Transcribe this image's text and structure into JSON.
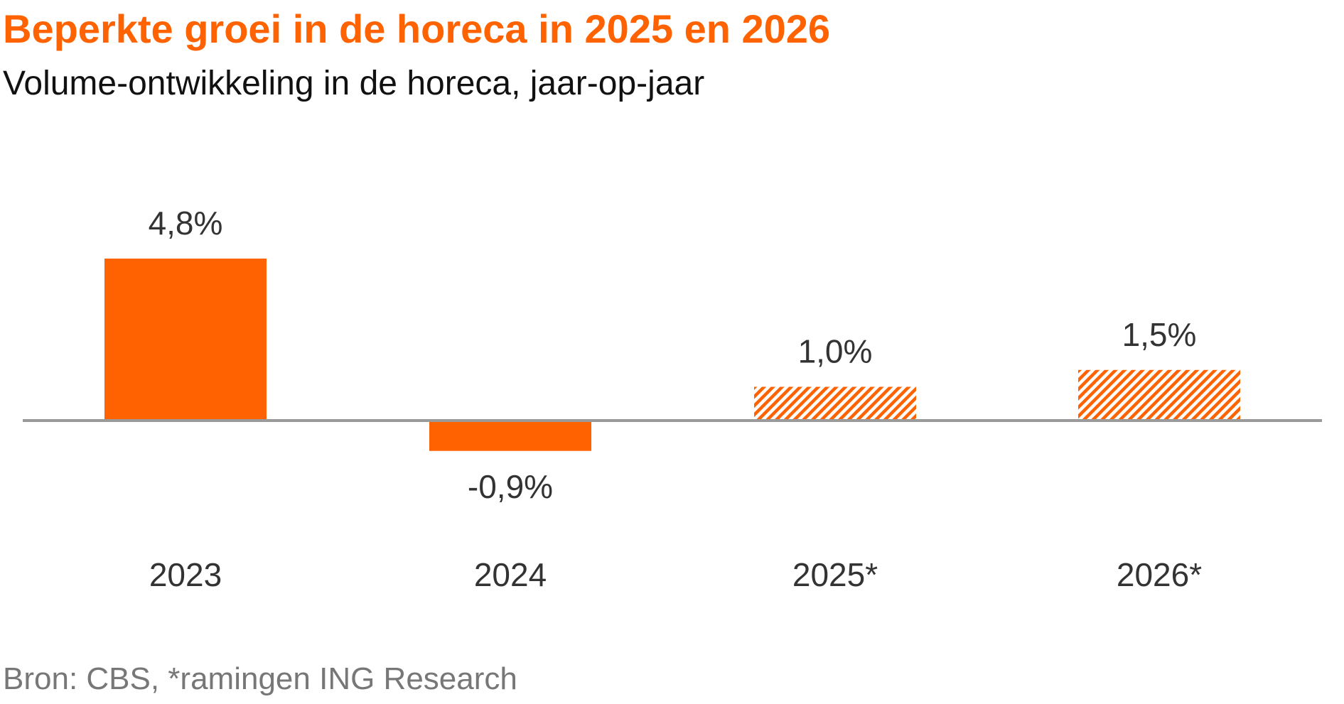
{
  "header": {
    "title": "Beperkte groei in de horeca in 2025 en 2026",
    "subtitle": "Volume-ontwikkeling in de horeca, jaar-op-jaar"
  },
  "footer": {
    "source": "Bron: CBS, *ramingen ING Research"
  },
  "colors": {
    "accent": "#FF6200",
    "axis": "#9a9a9a",
    "label": "#333333"
  },
  "chart_data": {
    "type": "bar",
    "title": "Beperkte groei in de horeca in 2025 en 2026",
    "subtitle": "Volume-ontwikkeling in de horeca, jaar-op-jaar",
    "categories": [
      "2023",
      "2024",
      "2025*",
      "2026*"
    ],
    "values": [
      4.8,
      -0.9,
      1.0,
      1.5
    ],
    "value_labels": [
      "4,8%",
      "-0,9%",
      "1,0%",
      "1,5%"
    ],
    "forecast": [
      false,
      false,
      true,
      true
    ],
    "bar_styles": [
      "solid",
      "solid",
      "hatched",
      "hatched"
    ],
    "unit": "%",
    "grid": false,
    "legend": "none",
    "ylim": [
      -0.9,
      4.8
    ]
  }
}
